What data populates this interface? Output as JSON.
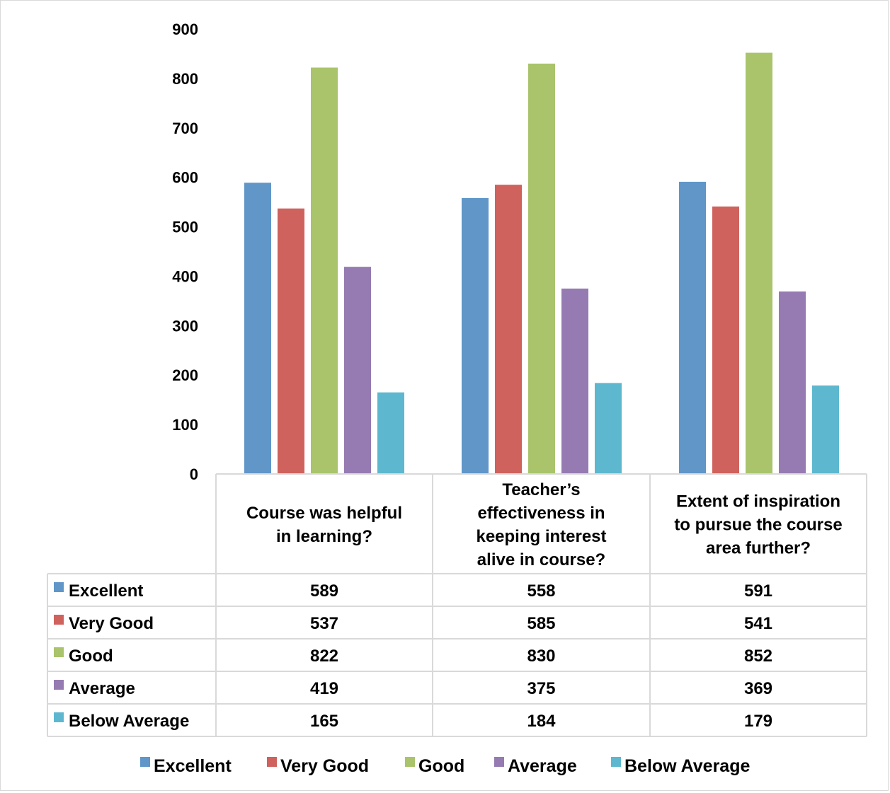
{
  "chart_data": {
    "type": "bar",
    "categories": [
      [
        "Course was helpful",
        "in learning?"
      ],
      [
        "Teacher’s",
        "effectiveness in",
        "keeping interest",
        "alive in course?"
      ],
      [
        "Extent of inspiration",
        "to pursue the course",
        "area further?"
      ]
    ],
    "series": [
      {
        "name": "Excellent",
        "color": "#6096C8",
        "values": [
          589,
          558,
          591
        ]
      },
      {
        "name": "Very Good",
        "color": "#CF625D",
        "values": [
          537,
          585,
          541
        ]
      },
      {
        "name": "Good",
        "color": "#A9C46B",
        "values": [
          822,
          830,
          852
        ]
      },
      {
        "name": "Average",
        "color": "#957BB1",
        "values": [
          419,
          375,
          369
        ]
      },
      {
        "name": "Below Average",
        "color": "#5DB8CF",
        "values": [
          165,
          184,
          179
        ]
      }
    ],
    "yticks": [
      "0",
      "100",
      "200",
      "300",
      "400",
      "500",
      "600",
      "700",
      "800",
      "900"
    ],
    "ylim": [
      0,
      900
    ],
    "data_table": true,
    "legend_position": "bottom",
    "gridlines": false
  }
}
